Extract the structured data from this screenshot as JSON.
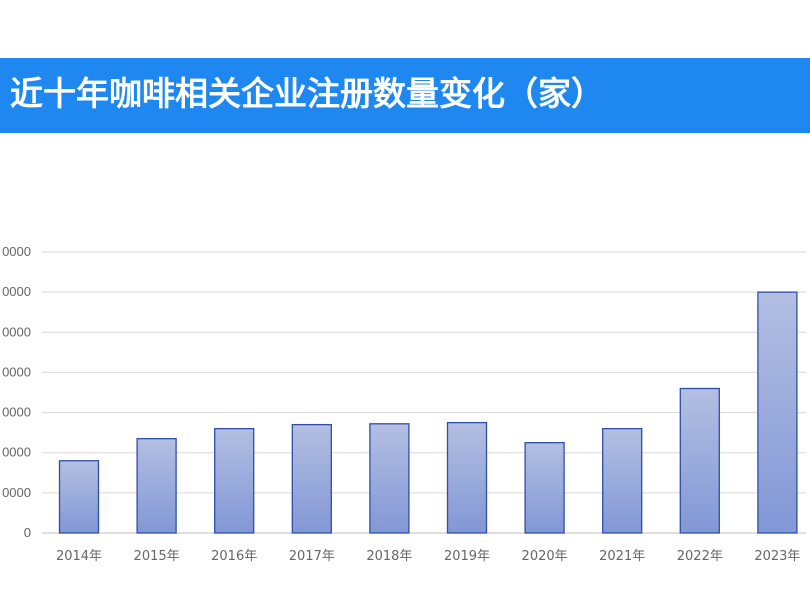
{
  "title": "近十年咖啡相关企业注册数量变化（家）",
  "colors": {
    "title_bg": "#1e87f0",
    "bar_top": "#b3bfe2",
    "bar_bottom": "#8297d6",
    "bar_stroke": "#2f4ea8",
    "grid": "#d9d9d9",
    "axis_text": "#666666"
  },
  "chart_data": {
    "type": "bar",
    "categories": [
      "2014年",
      "2015年",
      "2016年",
      "2017年",
      "2018年",
      "2019年",
      "2020年",
      "2021年",
      "2022年",
      "2023年"
    ],
    "values": [
      18000,
      23500,
      26000,
      27000,
      27200,
      27500,
      22500,
      26000,
      36000,
      60000
    ],
    "y_ticks": [
      "0",
      "0000",
      "0000",
      "0000",
      "0000",
      "0000",
      "0000",
      "0000"
    ],
    "ylim": [
      0,
      70000
    ],
    "grid": true
  }
}
